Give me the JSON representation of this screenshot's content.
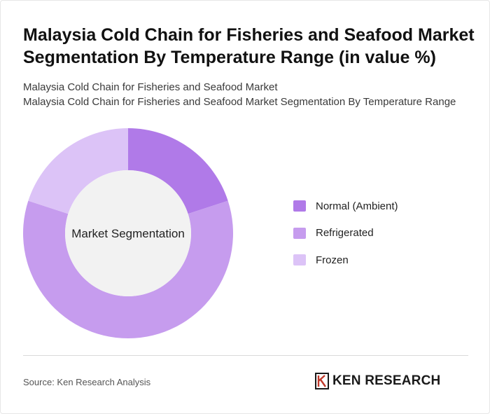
{
  "header": {
    "title": "Malaysia Cold Chain for Fisheries and Seafood Market Segmentation By Temperature Range (in value %)",
    "subtitle_line1": "Malaysia Cold Chain for Fisheries and Seafood Market",
    "subtitle_line2": "Malaysia Cold Chain for Fisheries and Seafood Market Segmentation By Temperature Range"
  },
  "chart_data": {
    "type": "pie",
    "variant": "donut",
    "center_label": "Market Segmentation",
    "categories": [
      "Normal (Ambient)",
      "Refrigerated",
      "Frozen"
    ],
    "values": [
      20,
      60,
      20
    ],
    "colors": [
      "#b07ae8",
      "#c69cee",
      "#dcc3f7"
    ],
    "legend_position": "right"
  },
  "footer": {
    "source": "Source: Ken Research Analysis",
    "brand": "KEN RESEARCH",
    "brand_icon": "ken-research-logo-icon"
  }
}
